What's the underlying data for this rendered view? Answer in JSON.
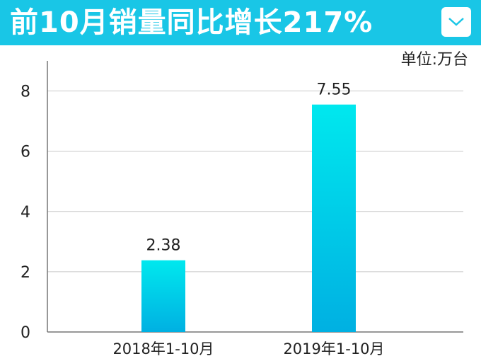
{
  "header": {
    "title": "前10月销量同比增长217%",
    "icon": "chevron-down-icon",
    "background_color": "#19c6e6"
  },
  "unit_label": "单位:万台",
  "chart_data": {
    "type": "bar",
    "categories": [
      "2018年1-10月",
      "2019年1-10月"
    ],
    "values": [
      2.38,
      7.55
    ],
    "value_labels": [
      "2.38",
      "7.55"
    ],
    "yticks": [
      0,
      2,
      4,
      6,
      8
    ],
    "ylim": [
      0,
      9
    ],
    "grid": true,
    "bar_gradient": [
      "#00e8ee",
      "#00b0e2"
    ]
  }
}
